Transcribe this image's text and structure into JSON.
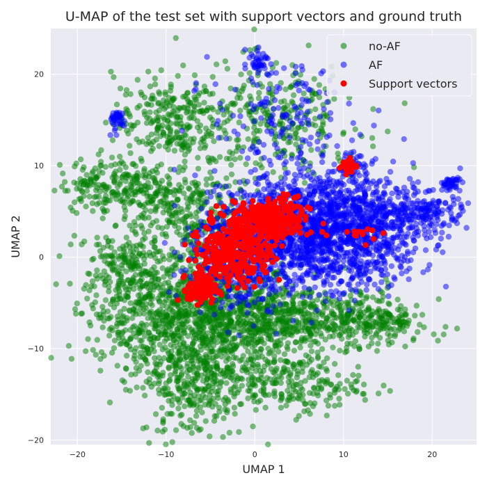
{
  "chart_data": {
    "type": "scatter",
    "title": "U-MAP of the test set with support vectors and ground truth",
    "xlabel": "UMAP 1",
    "ylabel": "UMAP 2",
    "xlim": [
      -23,
      25
    ],
    "ylim": [
      -20.5,
      25
    ],
    "xticks": [
      -20,
      -10,
      0,
      10,
      20
    ],
    "yticks": [
      -20,
      -10,
      0,
      10,
      20
    ],
    "grid": true,
    "legend_position": "top-right",
    "colors": {
      "background": "#eaeaf2",
      "grid": "#ffffff",
      "no_af": "#008000",
      "af": "#0000ff",
      "support": "#ff0000"
    },
    "series": [
      {
        "name": "no-AF",
        "color": "#008000",
        "alpha": 0.5,
        "description_points_approx": "dense cluster spanning x -20..17, y -18..22",
        "clusters": [
          {
            "cx": -5,
            "cy": -7,
            "sx": 5,
            "sy": 3.5,
            "n": 900
          },
          {
            "cx": 5,
            "cy": -7,
            "sx": 6,
            "sy": 2,
            "n": 500
          },
          {
            "cx": -13,
            "cy": -5,
            "sx": 3,
            "sy": 4,
            "n": 300
          },
          {
            "cx": -7,
            "cy": -14,
            "sx": 3,
            "sy": 3,
            "n": 250
          },
          {
            "cx": 4,
            "cy": -14,
            "sx": 4,
            "sy": 1.5,
            "n": 200
          },
          {
            "cx": -10,
            "cy": 15,
            "sx": 3,
            "sy": 2.5,
            "n": 250
          },
          {
            "cx": -16,
            "cy": 8,
            "sx": 3,
            "sy": 1.5,
            "n": 200
          },
          {
            "cx": -10,
            "cy": 6,
            "sx": 2.5,
            "sy": 2,
            "n": 150
          },
          {
            "cx": 2,
            "cy": 15,
            "sx": 5,
            "sy": 3,
            "n": 300
          },
          {
            "cx": -5,
            "cy": 3,
            "sx": 3,
            "sy": 3,
            "n": 200
          },
          {
            "cx": 13,
            "cy": -7,
            "sx": 3,
            "sy": 1,
            "n": 150
          },
          {
            "cx": -15,
            "cy": -1,
            "sx": 2,
            "sy": 2,
            "n": 120
          }
        ]
      },
      {
        "name": "AF",
        "color": "#0000ff",
        "alpha": 0.5,
        "clusters": [
          {
            "cx": 6,
            "cy": 3,
            "sx": 5,
            "sy": 3,
            "n": 1200
          },
          {
            "cx": 12,
            "cy": 3,
            "sx": 4,
            "sy": 3,
            "n": 600
          },
          {
            "cx": -2,
            "cy": 0,
            "sx": 3,
            "sy": 3,
            "n": 400
          },
          {
            "cx": 19,
            "cy": 5,
            "sx": 2.5,
            "sy": 1,
            "n": 150
          },
          {
            "cx": 22,
            "cy": 8,
            "sx": 0.6,
            "sy": 0.4,
            "n": 40
          },
          {
            "cx": 0.5,
            "cy": 21.5,
            "sx": 0.6,
            "sy": 0.6,
            "n": 40
          },
          {
            "cx": -15.5,
            "cy": 15,
            "sx": 0.6,
            "sy": 0.6,
            "n": 40
          },
          {
            "cx": 3,
            "cy": 15,
            "sx": 4,
            "sy": 3,
            "n": 150
          },
          {
            "cx": 11,
            "cy": 10,
            "sx": 0.6,
            "sy": 0.8,
            "n": 30
          }
        ]
      },
      {
        "name": "Support vectors",
        "color": "#ff0000",
        "alpha": 1.0,
        "clusters": [
          {
            "cx": -2,
            "cy": 1,
            "sx": 2,
            "sy": 2,
            "n": 350
          },
          {
            "cx": 2,
            "cy": 4,
            "sx": 2,
            "sy": 1.2,
            "n": 250
          },
          {
            "cx": -6,
            "cy": -3.5,
            "sx": 0.8,
            "sy": 0.8,
            "n": 120
          },
          {
            "cx": 10.5,
            "cy": 10,
            "sx": 0.5,
            "sy": 0.4,
            "n": 25
          },
          {
            "cx": 13,
            "cy": 2.5,
            "sx": 1,
            "sy": 0.5,
            "n": 12
          }
        ]
      }
    ]
  },
  "legend": {
    "items": [
      {
        "label": "no-AF",
        "color": "#008000"
      },
      {
        "label": "AF",
        "color": "#0000ff"
      },
      {
        "label": "Support vectors",
        "color": "#ff0000"
      }
    ]
  }
}
